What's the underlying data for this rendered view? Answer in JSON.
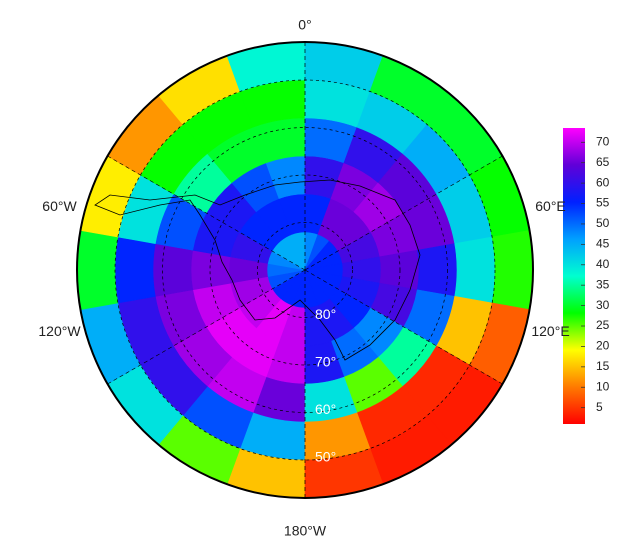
{
  "map": {
    "type": "polar_raster",
    "lon_edges": [
      -180,
      -160,
      -140,
      -120,
      -100,
      -80,
      -60,
      -40,
      -20,
      0,
      20,
      40,
      60,
      80,
      100,
      120,
      140,
      160,
      180
    ],
    "lat_edges": [
      90,
      82,
      74,
      66,
      58,
      50,
      42
    ],
    "values": [
      [
        55,
        70,
        70,
        65,
        45,
        15
      ],
      [
        55,
        72,
        72,
        70,
        52,
        25
      ],
      [
        55,
        70,
        72,
        68,
        60,
        40
      ],
      [
        52,
        68,
        70,
        66,
        60,
        45
      ],
      [
        50,
        65,
        66,
        64,
        55,
        30
      ],
      [
        48,
        60,
        58,
        52,
        40,
        18
      ],
      [
        45,
        55,
        58,
        35,
        28,
        12
      ],
      [
        45,
        55,
        52,
        30,
        28,
        17
      ],
      [
        45,
        55,
        48,
        30,
        28,
        38
      ],
      [
        48,
        55,
        60,
        50,
        40,
        42
      ],
      [
        52,
        65,
        66,
        60,
        42,
        30
      ],
      [
        55,
        65,
        68,
        64,
        45,
        30
      ],
      [
        55,
        62,
        66,
        65,
        42,
        28
      ],
      [
        55,
        60,
        64,
        58,
        40,
        27
      ],
      [
        55,
        58,
        62,
        50,
        15,
        8
      ],
      [
        55,
        55,
        48,
        35,
        4,
        3
      ],
      [
        55,
        58,
        50,
        25,
        4,
        3
      ],
      [
        55,
        58,
        58,
        40,
        12,
        5
      ]
    ],
    "clim": [
      1,
      73.5
    ],
    "colors": [
      "#ff0000",
      "#ff7a00",
      "#ffff00",
      "#00ff00",
      "#00ffd0",
      "#00a0ff",
      "#0020ff",
      "#6000d8",
      "#ff00ff"
    ],
    "colorbar_ticks": [
      5,
      10,
      15,
      20,
      25,
      30,
      35,
      40,
      45,
      50,
      55,
      60,
      65,
      70
    ],
    "meridians": [
      {
        "value": 0,
        "label": "0°"
      },
      {
        "value": 60,
        "label": "60°E"
      },
      {
        "value": 120,
        "label": "120°E"
      },
      {
        "value": 180,
        "label": "180°W"
      },
      {
        "value": -120,
        "label": "120°W"
      },
      {
        "value": -60,
        "label": "60°W"
      }
    ],
    "parallels": [
      {
        "value": 80,
        "label": "80°"
      },
      {
        "value": 70,
        "label": "70°"
      },
      {
        "value": 60,
        "label": "60°"
      },
      {
        "value": 50,
        "label": "50°"
      }
    ]
  }
}
